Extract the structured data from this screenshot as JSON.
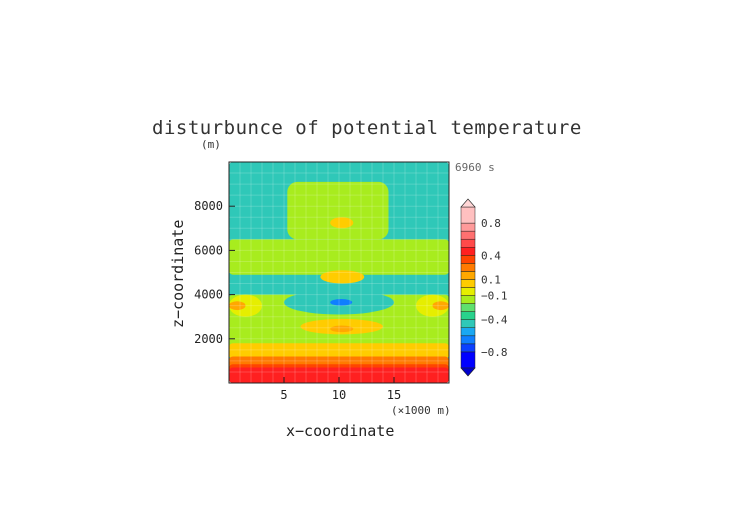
{
  "chart_data": {
    "type": "heatmap",
    "title": "disturbunce of potential temperature",
    "y_unit_label": "(m)",
    "x_unit_label": "(×1000 m)",
    "time_label": "6960 s",
    "xlabel": "x−coordinate",
    "ylabel": "z−coordinate",
    "xlim": [
      0,
      20
    ],
    "ylim": [
      0,
      10000
    ],
    "x_ticks": [
      "5",
      "10",
      "15"
    ],
    "y_ticks": [
      "2000",
      "4000",
      "6000",
      "8000"
    ],
    "colorbar": {
      "ticks": [
        "0.8",
        "0.4",
        "0.1",
        "−0.1",
        "−0.4",
        "−0.8"
      ],
      "levels": [
        -1.0,
        -0.8,
        -0.7,
        -0.6,
        -0.5,
        -0.4,
        -0.3,
        -0.2,
        -0.1,
        0.0,
        0.1,
        0.2,
        0.3,
        0.4,
        0.5,
        0.6,
        0.7,
        0.8,
        1.0
      ],
      "colors": [
        "#0000ff",
        "#0b40ff",
        "#0f7fff",
        "#1aa8f2",
        "#2fc8b8",
        "#28d28c",
        "#5fe06e",
        "#a8ec1e",
        "#e6ee00",
        "#ffcc00",
        "#ffa800",
        "#ff7a00",
        "#ff4400",
        "#ff2020",
        "#ff4a4a",
        "#ff7070",
        "#ff9a9a",
        "#ffc0c0"
      ]
    },
    "fields": [
      {
        "region": "background",
        "x": [
          0,
          20
        ],
        "z": [
          0,
          10000
        ],
        "value": -0.45
      },
      {
        "region": "mid-layer band",
        "x": [
          0,
          20
        ],
        "z": [
          4900,
          6500
        ],
        "value": -0.2
      },
      {
        "region": "upper plume",
        "x": [
          5.3,
          14.5
        ],
        "z": [
          6500,
          9100
        ],
        "value": -0.2
      },
      {
        "region": "lower layer",
        "x": [
          0,
          20
        ],
        "z": [
          1400,
          4000
        ],
        "value": -0.2
      },
      {
        "region": "upper warm cell",
        "x": [
          9.2,
          11.3
        ],
        "z": [
          7000,
          7500
        ],
        "value": 0.05
      },
      {
        "region": "warm cell",
        "x": [
          8.3,
          12.3
        ],
        "z": [
          4500,
          5100
        ],
        "value": 0.05
      },
      {
        "region": "ring cell",
        "x": [
          5,
          15
        ],
        "z": [
          3100,
          4200
        ],
        "value": -0.45
      },
      {
        "region": "cold core",
        "x": [
          9.2,
          11.2
        ],
        "z": [
          3500,
          3800
        ],
        "value": -0.65
      },
      {
        "region": "left-edge cell",
        "x": [
          0,
          3
        ],
        "z": [
          3000,
          4000
        ],
        "value": -0.05
      },
      {
        "region": "left-edge core",
        "x": [
          0,
          1.5
        ],
        "z": [
          3300,
          3700
        ],
        "value": 0.15
      },
      {
        "region": "right-edge cell",
        "x": [
          17,
          20
        ],
        "z": [
          3000,
          4000
        ],
        "value": -0.05
      },
      {
        "region": "right-edge core",
        "x": [
          18.5,
          20
        ],
        "z": [
          3300,
          3700
        ],
        "value": 0.15
      },
      {
        "region": "lower warm cell",
        "x": [
          6.5,
          14
        ],
        "z": [
          2200,
          2900
        ],
        "value": 0.05
      },
      {
        "region": "lower warm core",
        "x": [
          9.2,
          11.3
        ],
        "z": [
          2300,
          2600
        ],
        "value": 0.15
      },
      {
        "region": "surface layer",
        "x": [
          0,
          20
        ],
        "z": [
          1100,
          1800
        ],
        "value": 0.05
      },
      {
        "region": "surface layer",
        "x": [
          0,
          20
        ],
        "z": [
          700,
          1200
        ],
        "value": 0.25
      },
      {
        "region": "surface layer",
        "x": [
          0,
          20
        ],
        "z": [
          0,
          850
        ],
        "value": 0.35
      },
      {
        "region": "near-surface warm",
        "x": [
          0,
          20
        ],
        "z": [
          0,
          700
        ],
        "value": 0.45
      }
    ]
  }
}
